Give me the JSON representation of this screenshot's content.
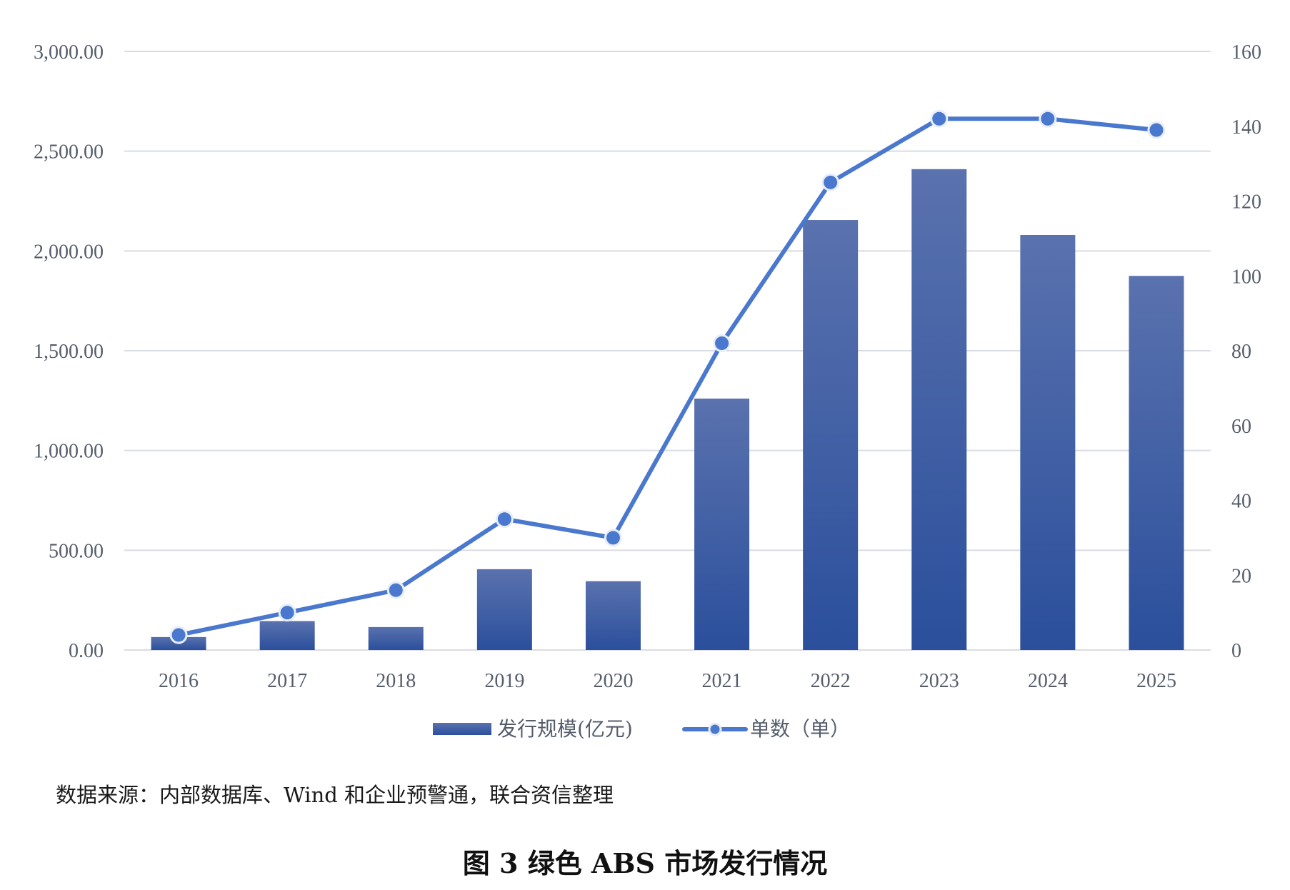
{
  "chart_data": {
    "type": "bar",
    "categories": [
      "2016",
      "2017",
      "2018",
      "2019",
      "2020",
      "2021",
      "2022",
      "2023",
      "2024",
      "2025"
    ],
    "series": [
      {
        "name": "发行规模(亿元)",
        "type": "bar",
        "axis": "left",
        "values": [
          65,
          145,
          115,
          405,
          345,
          1260,
          2155,
          2410,
          2080,
          1875
        ]
      },
      {
        "name": "单数（单）",
        "type": "line",
        "axis": "right",
        "values": [
          4,
          10,
          16,
          35,
          30,
          82,
          125,
          142,
          142,
          139
        ]
      }
    ],
    "y_left": {
      "min": 0,
      "max": 3000,
      "ticks": [
        0,
        500,
        1000,
        1500,
        2000,
        2500,
        3000
      ],
      "tick_labels": [
        "0.00",
        "500.00",
        "1,000.00",
        "1,500.00",
        "2,000.00",
        "2,500.00",
        "3,000.00"
      ]
    },
    "y_right": {
      "min": 0,
      "max": 160,
      "ticks": [
        0,
        20,
        40,
        60,
        80,
        100,
        120,
        140,
        160
      ],
      "tick_labels": [
        "0",
        "20",
        "40",
        "60",
        "80",
        "100",
        "120",
        "140",
        "160"
      ]
    },
    "grid": true,
    "legend_position": "bottom-center",
    "colors": {
      "bar_top": "#5a72ae",
      "bar_bottom": "#2b4f9c",
      "line": "#4a78cf",
      "grid": "#d9dce3"
    }
  },
  "source_note": "数据来源：内部数据库、Wind 和企业预警通，联合资信整理",
  "caption": "图 3  绿色 ABS 市场发行情况"
}
